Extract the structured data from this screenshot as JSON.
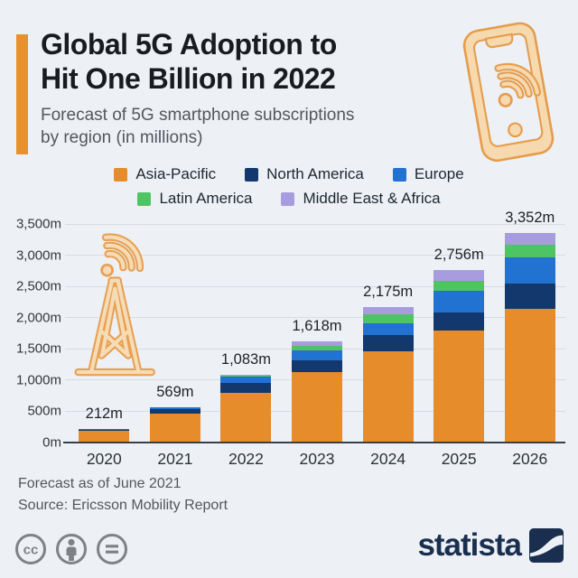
{
  "page": {
    "background": "#EDF1F5"
  },
  "header": {
    "title_line1": "Global 5G Adoption to",
    "title_line2": "Hit One Billion in 2022",
    "subtitle_line1": "Forecast of 5G smartphone subscriptions",
    "subtitle_line2": "by region (in millions)",
    "accent_color": "#E8912C",
    "decoration": "smartphone-with-wifi-icon"
  },
  "legend": {
    "rows": [
      [
        {
          "label": "Asia-Pacific",
          "color": "#E78C2B"
        },
        {
          "label": "North America",
          "color": "#12386E"
        },
        {
          "label": "Europe",
          "color": "#2272D2"
        }
      ],
      [
        {
          "label": "Latin America",
          "color": "#4FC462"
        },
        {
          "label": "Middle East & Africa",
          "color": "#A79CE0"
        }
      ]
    ]
  },
  "chart_data": {
    "type": "bar",
    "stacked": true,
    "title": "Global 5G Adoption to Hit One Billion in 2022",
    "subtitle": "Forecast of 5G smartphone subscriptions by region (in millions)",
    "unit": "millions of subscriptions",
    "categories": [
      "2020",
      "2021",
      "2022",
      "2023",
      "2024",
      "2025",
      "2026"
    ],
    "series": [
      {
        "name": "Asia-Pacific",
        "color": "#E78C2B",
        "values": [
          195,
          470,
          800,
          1130,
          1455,
          1795,
          2140
        ]
      },
      {
        "name": "North America",
        "color": "#12386E",
        "values": [
          15,
          70,
          150,
          185,
          265,
          295,
          400
        ]
      },
      {
        "name": "Europe",
        "color": "#2272D2",
        "values": [
          2,
          25,
          105,
          160,
          195,
          335,
          430
        ]
      },
      {
        "name": "Latin America",
        "color": "#4FC462",
        "values": [
          0,
          2,
          18,
          78,
          140,
          160,
          197
        ]
      },
      {
        "name": "Middle East & Africa",
        "color": "#A79CE0",
        "values": [
          0,
          2,
          10,
          65,
          120,
          171,
          185
        ]
      }
    ],
    "totals": [
      212,
      569,
      1083,
      1618,
      2175,
      2756,
      3352
    ],
    "total_labels": [
      "212m",
      "569m",
      "1,083m",
      "1,618m",
      "2,175m",
      "2,756m",
      "3,352m"
    ],
    "y_ticks": [
      {
        "value": 3500,
        "label": "3,500m"
      },
      {
        "value": 3000,
        "label": "3,000m"
      },
      {
        "value": 2500,
        "label": "2,500m"
      },
      {
        "value": 2000,
        "label": "2,000m"
      },
      {
        "value": 1500,
        "label": "1,500m"
      },
      {
        "value": 1000,
        "label": "1,000m"
      },
      {
        "value": 500,
        "label": "500m"
      },
      {
        "value": 0,
        "label": "0m"
      }
    ],
    "ylim": [
      0,
      3500
    ],
    "grid": true,
    "legend_position": "top",
    "decoration": "cell-tower-with-wifi-icon"
  },
  "footer": {
    "note": "Forecast as of June 2021",
    "source": "Source: Ericsson Mobility Report"
  },
  "branding": {
    "logo_text": "statista",
    "logo_color": "#1A2E4F",
    "license_icons": [
      "cc-icon",
      "cc-by-icon",
      "cc-nd-icon"
    ]
  }
}
